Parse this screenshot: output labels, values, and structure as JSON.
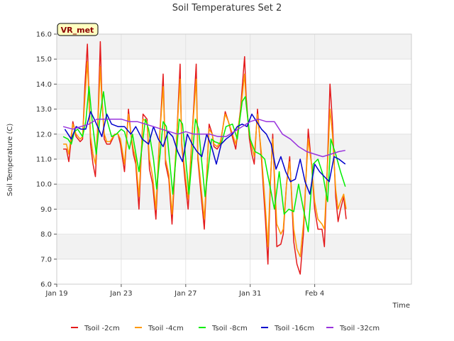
{
  "chart_data": {
    "type": "line",
    "title": "Soil Temperatures Set 2",
    "xlabel": "Time",
    "ylabel": "Soil Temperature (C)",
    "ylim": [
      6.0,
      16.0
    ],
    "xlim": [
      0,
      22
    ],
    "x_ticks": [
      {
        "x": 0,
        "label": "Jan 19"
      },
      {
        "x": 4,
        "label": "Jan 23"
      },
      {
        "x": 8,
        "label": "Jan 27"
      },
      {
        "x": 12,
        "label": "Jan 31"
      },
      {
        "x": 16,
        "label": "Feb 4"
      }
    ],
    "y_ticks": [
      6.0,
      7.0,
      8.0,
      9.0,
      10.0,
      11.0,
      12.0,
      13.0,
      14.0,
      15.0,
      16.0
    ],
    "y_tick_labels": [
      "6.0",
      "7.0",
      "8.0",
      "9.0",
      "10.0",
      "11.0",
      "12.0",
      "13.0",
      "14.0",
      "15.0",
      "16.0"
    ],
    "grid": true,
    "banded_background": true,
    "legend_position": "bottom",
    "site_label": "VR_met",
    "series": [
      {
        "name": "Tsoil -2cm",
        "color": "#e41a1c",
        "x": [
          0.4,
          0.6,
          0.75,
          0.85,
          1.0,
          1.2,
          1.45,
          1.6,
          1.75,
          1.9,
          2.0,
          2.1,
          2.25,
          2.4,
          2.55,
          2.7,
          2.8,
          2.95,
          3.1,
          3.3,
          3.6,
          3.8,
          3.95,
          4.2,
          4.45,
          4.6,
          4.75,
          4.9,
          5.1,
          5.35,
          5.6,
          5.75,
          5.95,
          6.15,
          6.35,
          6.6,
          6.75,
          6.95,
          7.15,
          7.45,
          7.65,
          7.75,
          7.95,
          8.15,
          8.4,
          8.65,
          8.75,
          8.95,
          9.15,
          9.45,
          9.65,
          9.75,
          9.95,
          10.15,
          10.45,
          10.65,
          10.85,
          11.1,
          11.4,
          11.65,
          11.75,
          11.95,
          12.1,
          12.25,
          12.45,
          12.7,
          12.95,
          13.1,
          13.25,
          13.4,
          13.65,
          13.9,
          14.05,
          14.25,
          14.45,
          14.7,
          14.9,
          15.1,
          15.3,
          15.6,
          15.8,
          16.0,
          16.2,
          16.45,
          16.6,
          16.8,
          16.95,
          17.1,
          17.3,
          17.45,
          17.6,
          17.8,
          17.95
        ],
        "y": [
          11.4,
          11.4,
          10.9,
          11.5,
          12.5,
          11.9,
          11.7,
          11.8,
          14.0,
          15.6,
          13.5,
          11.6,
          10.8,
          10.3,
          12.5,
          15.7,
          13.5,
          11.8,
          11.6,
          11.6,
          12.0,
          12.0,
          11.6,
          10.5,
          13.0,
          12.0,
          11.2,
          10.8,
          9.0,
          12.8,
          12.6,
          10.6,
          10.0,
          8.6,
          11.5,
          14.4,
          10.8,
          10.2,
          8.4,
          12.0,
          14.8,
          11.6,
          10.2,
          9.0,
          12.0,
          14.8,
          11.0,
          9.6,
          8.2,
          12.4,
          12.0,
          11.5,
          11.4,
          11.6,
          12.9,
          12.5,
          12.0,
          11.4,
          13.0,
          15.1,
          13.5,
          11.8,
          11.2,
          10.8,
          13.0,
          11.0,
          8.5,
          6.8,
          10.0,
          12.0,
          7.5,
          7.6,
          8.0,
          10.0,
          11.1,
          7.7,
          6.8,
          6.4,
          8.0,
          12.2,
          10.8,
          9.0,
          8.2,
          8.2,
          7.5,
          11.0,
          14.0,
          12.5,
          9.5,
          8.5,
          9.0,
          9.5,
          8.6
        ]
      },
      {
        "name": "Tsoil -4cm",
        "color": "#ff9900",
        "x": [
          0.4,
          0.6,
          0.75,
          0.85,
          1.0,
          1.2,
          1.45,
          1.6,
          1.75,
          1.9,
          2.0,
          2.1,
          2.25,
          2.4,
          2.55,
          2.7,
          2.8,
          2.95,
          3.1,
          3.3,
          3.6,
          3.8,
          3.95,
          4.2,
          4.45,
          4.6,
          4.75,
          4.9,
          5.1,
          5.35,
          5.6,
          5.75,
          5.95,
          6.15,
          6.35,
          6.6,
          6.75,
          6.95,
          7.15,
          7.45,
          7.65,
          7.75,
          7.95,
          8.15,
          8.4,
          8.65,
          8.75,
          8.95,
          9.15,
          9.45,
          9.65,
          9.75,
          9.95,
          10.15,
          10.45,
          10.65,
          10.85,
          11.1,
          11.4,
          11.65,
          11.75,
          11.95,
          12.1,
          12.25,
          12.45,
          12.7,
          12.95,
          13.1,
          13.25,
          13.4,
          13.65,
          13.9,
          14.05,
          14.25,
          14.45,
          14.7,
          14.9,
          15.1,
          15.3,
          15.6,
          15.8,
          16.0,
          16.2,
          16.45,
          16.6,
          16.8,
          16.95,
          17.1,
          17.3,
          17.45,
          17.6,
          17.8,
          17.95
        ],
        "y": [
          11.6,
          11.6,
          11.2,
          11.7,
          12.4,
          12.0,
          11.8,
          11.9,
          13.5,
          14.9,
          13.3,
          11.9,
          11.2,
          10.8,
          12.4,
          14.7,
          13.3,
          12.0,
          11.7,
          11.7,
          12.0,
          12.0,
          11.8,
          10.8,
          12.8,
          12.0,
          11.4,
          11.0,
          9.5,
          12.6,
          12.5,
          11.0,
          10.3,
          9.0,
          11.6,
          13.9,
          11.0,
          10.4,
          8.8,
          12.0,
          14.2,
          11.7,
          10.5,
          9.4,
          12.0,
          14.2,
          11.2,
          9.9,
          8.6,
          12.2,
          12.0,
          11.6,
          11.5,
          11.7,
          12.8,
          12.5,
          12.1,
          11.6,
          12.9,
          14.4,
          13.2,
          12.0,
          11.5,
          11.1,
          12.8,
          11.2,
          9.0,
          7.5,
          10.2,
          11.8,
          8.4,
          8.0,
          8.2,
          10.0,
          10.9,
          8.2,
          7.4,
          7.1,
          8.4,
          11.8,
          10.8,
          9.3,
          8.6,
          8.4,
          8.2,
          10.8,
          13.0,
          12.0,
          9.8,
          9.0,
          9.3,
          9.6,
          9.0
        ]
      },
      {
        "name": "Tsoil -8cm",
        "color": "#00ee00",
        "x": [
          0.4,
          0.7,
          0.9,
          1.1,
          1.3,
          1.6,
          1.8,
          2.0,
          2.2,
          2.45,
          2.7,
          2.9,
          3.1,
          3.4,
          3.7,
          4.0,
          4.2,
          4.5,
          4.7,
          5.1,
          5.5,
          5.7,
          6.0,
          6.2,
          6.6,
          6.8,
          7.2,
          7.6,
          7.8,
          8.2,
          8.6,
          8.8,
          9.2,
          9.6,
          9.8,
          10.2,
          10.5,
          10.9,
          11.2,
          11.5,
          11.7,
          12.0,
          12.3,
          12.6,
          12.9,
          13.2,
          13.5,
          13.8,
          14.1,
          14.4,
          14.7,
          15.0,
          15.3,
          15.6,
          15.9,
          16.2,
          16.5,
          16.8,
          17.0,
          17.3,
          17.6,
          17.9
        ],
        "y": [
          11.9,
          11.8,
          11.6,
          12.1,
          12.2,
          11.9,
          12.5,
          13.9,
          12.5,
          11.2,
          12.8,
          13.7,
          12.6,
          11.9,
          12.0,
          12.2,
          12.1,
          11.4,
          12.0,
          10.5,
          12.6,
          12.2,
          11.0,
          9.8,
          12.5,
          12.3,
          9.6,
          12.6,
          12.4,
          9.6,
          12.6,
          12.2,
          9.5,
          11.8,
          11.7,
          11.6,
          12.3,
          12.4,
          11.8,
          13.3,
          13.5,
          11.8,
          11.3,
          11.2,
          11.0,
          10.0,
          9.0,
          10.5,
          8.8,
          9.0,
          8.9,
          10.0,
          9.0,
          8.1,
          10.8,
          11.0,
          10.4,
          9.3,
          11.8,
          11.2,
          10.5,
          9.9
        ]
      },
      {
        "name": "Tsoil -16cm",
        "color": "#0000cc",
        "x": [
          0.5,
          0.9,
          1.2,
          1.5,
          1.8,
          2.1,
          2.4,
          2.8,
          3.1,
          3.4,
          3.8,
          4.2,
          4.6,
          4.9,
          5.3,
          5.7,
          6.0,
          6.3,
          6.6,
          6.9,
          7.2,
          7.5,
          7.8,
          8.1,
          8.4,
          8.7,
          9.0,
          9.3,
          9.6,
          9.9,
          10.2,
          10.5,
          10.9,
          11.2,
          11.5,
          11.8,
          12.1,
          12.4,
          12.7,
          13.0,
          13.3,
          13.6,
          13.9,
          14.2,
          14.5,
          14.8,
          15.1,
          15.4,
          15.7,
          16.0,
          16.3,
          16.6,
          16.9,
          17.2,
          17.5,
          17.9
        ],
        "y": [
          12.2,
          11.8,
          12.3,
          12.2,
          12.2,
          12.9,
          12.5,
          11.9,
          12.8,
          12.4,
          12.3,
          12.3,
          12.0,
          12.3,
          11.8,
          11.6,
          12.3,
          11.8,
          11.5,
          12.1,
          11.9,
          11.3,
          10.9,
          12.0,
          11.6,
          11.3,
          11.1,
          12.0,
          11.5,
          10.8,
          11.6,
          11.8,
          12.0,
          12.3,
          12.4,
          12.3,
          12.8,
          12.5,
          12.2,
          12.0,
          11.6,
          10.6,
          11.1,
          10.5,
          10.1,
          10.2,
          11.0,
          10.1,
          9.6,
          10.8,
          10.5,
          10.3,
          10.1,
          11.1,
          11.0,
          10.8
        ]
      },
      {
        "name": "Tsoil -32cm",
        "color": "#9933dd",
        "x": [
          0.4,
          1.0,
          1.5,
          2.0,
          2.5,
          3.0,
          3.5,
          4.0,
          4.5,
          5.0,
          5.5,
          6.0,
          6.5,
          7.0,
          7.5,
          8.0,
          8.5,
          9.0,
          9.5,
          10.0,
          10.5,
          11.0,
          11.5,
          12.0,
          12.5,
          13.0,
          13.5,
          14.0,
          14.5,
          15.0,
          15.5,
          16.0,
          16.5,
          17.0,
          17.5,
          17.9
        ],
        "y": [
          12.3,
          12.2,
          12.3,
          12.4,
          12.6,
          12.6,
          12.6,
          12.6,
          12.5,
          12.5,
          12.4,
          12.3,
          12.2,
          12.1,
          12.0,
          12.1,
          12.0,
          12.0,
          12.0,
          11.9,
          11.9,
          12.1,
          12.3,
          12.5,
          12.6,
          12.5,
          12.5,
          12.0,
          11.8,
          11.5,
          11.3,
          11.2,
          11.1,
          11.2,
          11.3,
          11.35
        ]
      }
    ]
  }
}
